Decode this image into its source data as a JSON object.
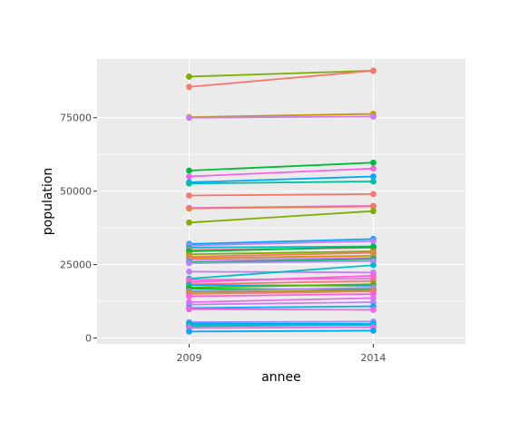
{
  "chart_data": {
    "type": "line",
    "xlabel": "annee",
    "ylabel": "population",
    "x": [
      2009,
      2014
    ],
    "x_tick_labels": [
      "2009",
      "2014"
    ],
    "y_ticks": [
      0,
      25000,
      50000,
      75000
    ],
    "y_tick_labels": [
      "0",
      "25000",
      "50000",
      "75000"
    ],
    "xlim": [
      2006.5,
      2016.5
    ],
    "ylim": [
      -2000,
      95000
    ],
    "panel_background": "#ebebeb",
    "grid": true,
    "legend": "none",
    "series": [
      {
        "values": [
          89000,
          91000
        ],
        "color": "#7cae00"
      },
      {
        "values": [
          85500,
          91000
        ],
        "color": "#f8766d"
      },
      {
        "values": [
          75200,
          76300
        ],
        "color": "#c49a00"
      },
      {
        "values": [
          75000,
          75400
        ],
        "color": "#c77cff"
      },
      {
        "values": [
          57000,
          59700
        ],
        "color": "#00ba38"
      },
      {
        "values": [
          55000,
          57700
        ],
        "color": "#f564e3"
      },
      {
        "values": [
          53000,
          55000
        ],
        "color": "#00a9ff"
      },
      {
        "values": [
          52600,
          53300
        ],
        "color": "#00c19f"
      },
      {
        "values": [
          48500,
          49000
        ],
        "color": "#f8766d"
      },
      {
        "values": [
          44300,
          45000
        ],
        "color": "#e76bf3"
      },
      {
        "values": [
          44100,
          44800
        ],
        "color": "#f07e4f"
      },
      {
        "values": [
          39300,
          43200
        ],
        "color": "#7cae00"
      },
      {
        "values": [
          32000,
          33700
        ],
        "color": "#00a9ff"
      },
      {
        "values": [
          31500,
          33000
        ],
        "color": "#c77cff"
      },
      {
        "values": [
          30800,
          31200
        ],
        "color": "#00bfc4"
      },
      {
        "values": [
          30000,
          30700
        ],
        "color": "#ff6c91"
      },
      {
        "values": [
          29500,
          31000
        ],
        "color": "#00ba38"
      },
      {
        "values": [
          28500,
          29500
        ],
        "color": "#7cae00"
      },
      {
        "values": [
          27700,
          29000
        ],
        "color": "#f8766d"
      },
      {
        "values": [
          27200,
          28000
        ],
        "color": "#c49a00"
      },
      {
        "values": [
          26600,
          27300
        ],
        "color": "#e76bf3"
      },
      {
        "values": [
          25800,
          26900
        ],
        "color": "#00bc59"
      },
      {
        "values": [
          25500,
          26200
        ],
        "color": "#b385ff"
      },
      {
        "values": [
          22600,
          22300
        ],
        "color": "#c77cff"
      },
      {
        "values": [
          20200,
          24800
        ],
        "color": "#00bfc4"
      },
      {
        "values": [
          19800,
          20200
        ],
        "color": "#f564e3"
      },
      {
        "values": [
          19000,
          21200
        ],
        "color": "#fd61d1"
      },
      {
        "values": [
          18300,
          19400
        ],
        "color": "#f8766d"
      },
      {
        "values": [
          18000,
          17800
        ],
        "color": "#00a9ff"
      },
      {
        "values": [
          17200,
          18300
        ],
        "color": "#53b400"
      },
      {
        "values": [
          16800,
          16500
        ],
        "color": "#00ba38"
      },
      {
        "values": [
          16000,
          17100
        ],
        "color": "#a58aff"
      },
      {
        "values": [
          15600,
          16200
        ],
        "color": "#a3a500"
      },
      {
        "values": [
          15000,
          15900
        ],
        "color": "#f8766d"
      },
      {
        "values": [
          14200,
          15000
        ],
        "color": "#fb61d7"
      },
      {
        "values": [
          12200,
          13600
        ],
        "color": "#e76bf3"
      },
      {
        "values": [
          11400,
          12200
        ],
        "color": "#c77cff"
      },
      {
        "values": [
          10200,
          10800
        ],
        "color": "#00b0f6"
      },
      {
        "values": [
          9800,
          9600
        ],
        "color": "#f564e3"
      },
      {
        "values": [
          5400,
          5600
        ],
        "color": "#9590ff"
      },
      {
        "values": [
          5000,
          4800
        ],
        "color": "#00a9ff"
      },
      {
        "values": [
          4500,
          4400
        ],
        "color": "#00c19f"
      },
      {
        "values": [
          4000,
          4500
        ],
        "color": "#00bfc4"
      },
      {
        "values": [
          3400,
          3700
        ],
        "color": "#f564e3"
      },
      {
        "values": [
          2200,
          2500
        ],
        "color": "#00a9ff"
      }
    ]
  }
}
